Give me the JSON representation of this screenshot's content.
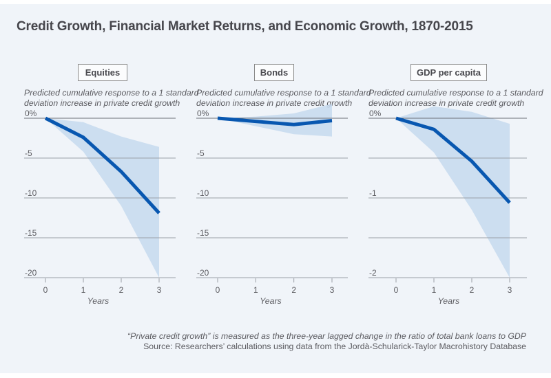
{
  "title": "Credit Growth, Financial Market Returns, and Economic Growth, 1870-2015",
  "footnote": {
    "note": "“Private credit growth” is measured as the three-year lagged change in the ratio of total bank loans to GDP",
    "source": "Source: Researchers’ calculations using data from the Jordà-Schularick-Taylor Macrohistory Database"
  },
  "colors": {
    "background": "#f0f4f9",
    "line": "#0857b0",
    "band": "#c6d9ef",
    "grid": "#9aa0a8",
    "text": "#5b5b60"
  },
  "chart_data": [
    {
      "type": "line",
      "panel_label": "Equities",
      "subtitle_line1": "Predicted cumulative response to a 1 standard",
      "subtitle_line2": "deviation increase in private credit growth",
      "xlabel": "Years",
      "x": [
        0,
        1,
        2,
        3
      ],
      "x_tick_labels": [
        "0",
        "1",
        "2",
        "3"
      ],
      "ylim": [
        -20,
        0
      ],
      "y_ticks": [
        0,
        -5,
        -10,
        -15,
        -20
      ],
      "y_tick_labels": [
        "0%",
        "-5",
        "-10",
        "-15",
        "-20"
      ],
      "grid": true,
      "series": [
        {
          "name": "Predicted response",
          "values": [
            0,
            -2.4,
            -6.7,
            -11.9
          ]
        },
        {
          "name": "Confidence band upper",
          "values": [
            0,
            -0.5,
            -2.3,
            -3.6
          ]
        },
        {
          "name": "Confidence band lower",
          "values": [
            0,
            -4.2,
            -11.0,
            -20.0
          ]
        }
      ]
    },
    {
      "type": "line",
      "panel_label": "Bonds",
      "subtitle_line1": "Predicted cumulative response to a 1 standard",
      "subtitle_line2": "deviation increase in private credit growth",
      "xlabel": "Years",
      "x": [
        0,
        1,
        2,
        3
      ],
      "x_tick_labels": [
        "0",
        "1",
        "2",
        "3"
      ],
      "ylim": [
        -20,
        0
      ],
      "y_ticks": [
        0,
        -5,
        -10,
        -15,
        -20
      ],
      "y_tick_labels": [
        "0%",
        "-5",
        "-10",
        "-15",
        "-20"
      ],
      "grid": true,
      "series": [
        {
          "name": "Predicted response",
          "values": [
            0,
            -0.4,
            -0.8,
            -0.3
          ]
        },
        {
          "name": "Confidence band upper",
          "values": [
            0,
            0.2,
            0.6,
            1.8
          ]
        },
        {
          "name": "Confidence band lower",
          "values": [
            0,
            -1.0,
            -2.0,
            -2.3
          ]
        }
      ]
    },
    {
      "type": "line",
      "panel_label": "GDP per capita",
      "subtitle_line1": "Predicted cumulative response to a 1 standard",
      "subtitle_line2": "deviation increase in private credit growth",
      "xlabel": "Years",
      "x": [
        0,
        1,
        2,
        3
      ],
      "x_tick_labels": [
        "0",
        "1",
        "2",
        "3"
      ],
      "ylim": [
        -2,
        0
      ],
      "y_ticks": [
        0,
        -0.5,
        -1,
        -1.5,
        -2
      ],
      "y_tick_labels": [
        "0%",
        "",
        "-1",
        "",
        "-2"
      ],
      "grid": true,
      "series": [
        {
          "name": "Predicted response",
          "values": [
            0,
            -0.14,
            -0.54,
            -1.06
          ]
        },
        {
          "name": "Confidence band upper",
          "values": [
            0,
            0.15,
            0.08,
            -0.07
          ]
        },
        {
          "name": "Confidence band lower",
          "values": [
            0,
            -0.43,
            -1.15,
            -2.0
          ]
        }
      ]
    }
  ]
}
